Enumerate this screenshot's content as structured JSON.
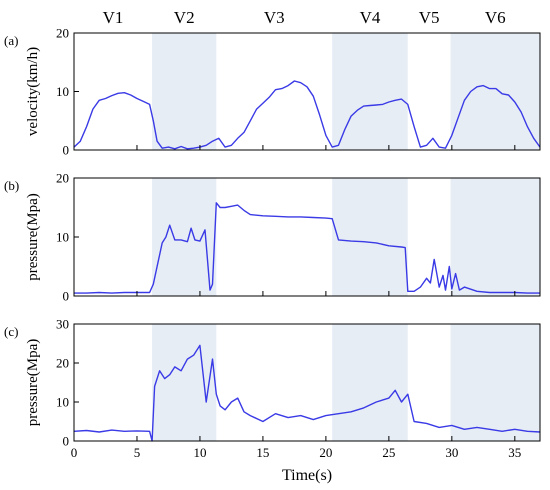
{
  "chart_data": {
    "type": "line",
    "xlabel": "Time(s)",
    "xlim": [
      0,
      37
    ],
    "xticks": [
      0,
      5,
      10,
      15,
      20,
      25,
      30,
      35
    ],
    "segments": [
      {
        "label": "V1",
        "x0": 0,
        "x1": 6.2,
        "shaded": false
      },
      {
        "label": "V2",
        "x0": 6.2,
        "x1": 11.3,
        "shaded": true
      },
      {
        "label": "V3",
        "x0": 11.3,
        "x1": 20.5,
        "shaded": false
      },
      {
        "label": "V4",
        "x0": 20.5,
        "x1": 26.5,
        "shaded": true
      },
      {
        "label": "V5",
        "x0": 26.5,
        "x1": 29.9,
        "shaded": false
      },
      {
        "label": "V6",
        "x0": 29.9,
        "x1": 37,
        "shaded": true
      }
    ],
    "panels": [
      {
        "label": "(a)",
        "ylabel": "velocity(km/h)",
        "ylim": [
          0,
          20
        ],
        "yticks": [
          0,
          10,
          20
        ],
        "x": [
          0,
          0.5,
          1,
          1.5,
          2,
          2.5,
          3,
          3.5,
          4,
          4.5,
          5,
          5.5,
          6,
          6.3,
          6.6,
          7,
          7.5,
          8,
          8.5,
          9,
          9.5,
          10,
          10.5,
          11,
          11.5,
          12,
          12.5,
          13,
          13.5,
          14,
          14.5,
          15,
          15.5,
          16,
          16.5,
          17,
          17.5,
          18,
          18.5,
          19,
          19.5,
          20,
          20.5,
          21,
          21.5,
          22,
          22.5,
          23,
          23.5,
          24,
          24.5,
          25,
          25.5,
          26,
          26.5,
          27,
          27.5,
          28,
          28.5,
          29,
          29.5,
          30,
          30.5,
          31,
          31.5,
          32,
          32.5,
          33,
          33.5,
          34,
          34.5,
          35,
          35.5,
          36,
          36.5,
          37
        ],
        "y": [
          0.5,
          1.5,
          4,
          7,
          8.5,
          8.8,
          9.3,
          9.7,
          9.8,
          9.4,
          8.8,
          8.3,
          7.8,
          5,
          1.5,
          0.3,
          0.5,
          0.2,
          0.6,
          0.2,
          0.3,
          0.5,
          0.8,
          1.5,
          2,
          0.5,
          0.8,
          2,
          3,
          5,
          7,
          8,
          9,
          10.3,
          10.5,
          11,
          11.8,
          11.5,
          10.8,
          9.2,
          6,
          2.5,
          0.5,
          0.8,
          3.5,
          5.8,
          6.8,
          7.5,
          7.6,
          7.7,
          7.8,
          8.2,
          8.5,
          8.7,
          7.8,
          4,
          0.5,
          0.8,
          2,
          0.5,
          0.3,
          2.5,
          5.5,
          8.5,
          10,
          10.8,
          11,
          10.5,
          10.5,
          9.6,
          9.4,
          8.2,
          6.5,
          4,
          2,
          0.5
        ]
      },
      {
        "label": "(b)",
        "ylabel": "pressure(Mpa)",
        "ylim": [
          0,
          20
        ],
        "yticks": [
          0,
          10,
          20
        ],
        "x": [
          0,
          1,
          2,
          3,
          4,
          5,
          6,
          6.3,
          6.6,
          7,
          7.3,
          7.6,
          8,
          8.5,
          9,
          9.3,
          9.6,
          10,
          10.4,
          10.8,
          11,
          11.3,
          11.6,
          12,
          12.5,
          13,
          13.5,
          14,
          15,
          16,
          17,
          18,
          19,
          20,
          20.5,
          21,
          22,
          23,
          24,
          25,
          26,
          26.3,
          26.5,
          27,
          27.5,
          28,
          28.3,
          28.6,
          29,
          29.3,
          29.5,
          29.8,
          30,
          30.3,
          30.6,
          31,
          32,
          33,
          34,
          35,
          36,
          37
        ],
        "y": [
          0.5,
          0.5,
          0.6,
          0.5,
          0.6,
          0.6,
          0.6,
          2,
          5,
          9,
          10,
          12,
          9.5,
          9.5,
          9.2,
          11.5,
          9.5,
          9.3,
          11.2,
          1,
          2,
          15.8,
          15,
          15,
          15.2,
          15.4,
          14.5,
          13.8,
          13.6,
          13.5,
          13.4,
          13.4,
          13.3,
          13.2,
          13.1,
          9.5,
          9.3,
          9.2,
          9,
          8.5,
          8.3,
          8.2,
          0.8,
          0.8,
          1.5,
          3,
          2.2,
          6.2,
          1.5,
          3.5,
          1,
          5,
          1.2,
          3.8,
          1,
          1.5,
          0.8,
          0.6,
          0.6,
          0.6,
          0.5,
          0.5
        ]
      },
      {
        "label": "(c)",
        "ylabel": "pressure(Mpa)",
        "ylim": [
          0,
          30
        ],
        "yticks": [
          0,
          10,
          20,
          30
        ],
        "x": [
          0,
          1,
          2,
          3,
          4,
          5,
          6,
          6.2,
          6.4,
          6.8,
          7.2,
          7.6,
          8,
          8.5,
          9,
          9.5,
          10,
          10.5,
          11,
          11.3,
          11.6,
          12,
          12.5,
          13,
          13.5,
          14,
          15,
          16,
          17,
          18,
          19,
          20,
          21,
          22,
          23,
          24,
          25,
          25.5,
          26,
          26.5,
          27,
          28,
          29,
          30,
          31,
          32,
          33,
          34,
          35,
          36,
          37
        ],
        "y": [
          2.5,
          2.7,
          2.3,
          2.8,
          2.5,
          2.6,
          2.5,
          0,
          14,
          18,
          16,
          17,
          19,
          18,
          21,
          22,
          24.5,
          10,
          21,
          12,
          9,
          8,
          10,
          11,
          7.5,
          6.5,
          5,
          7,
          6,
          6.5,
          5.5,
          6.5,
          7,
          7.5,
          8.5,
          10,
          11,
          13,
          10,
          12,
          5,
          4.5,
          3.5,
          4,
          3,
          3.5,
          3,
          2.5,
          3,
          2.5,
          2.3
        ]
      }
    ]
  }
}
